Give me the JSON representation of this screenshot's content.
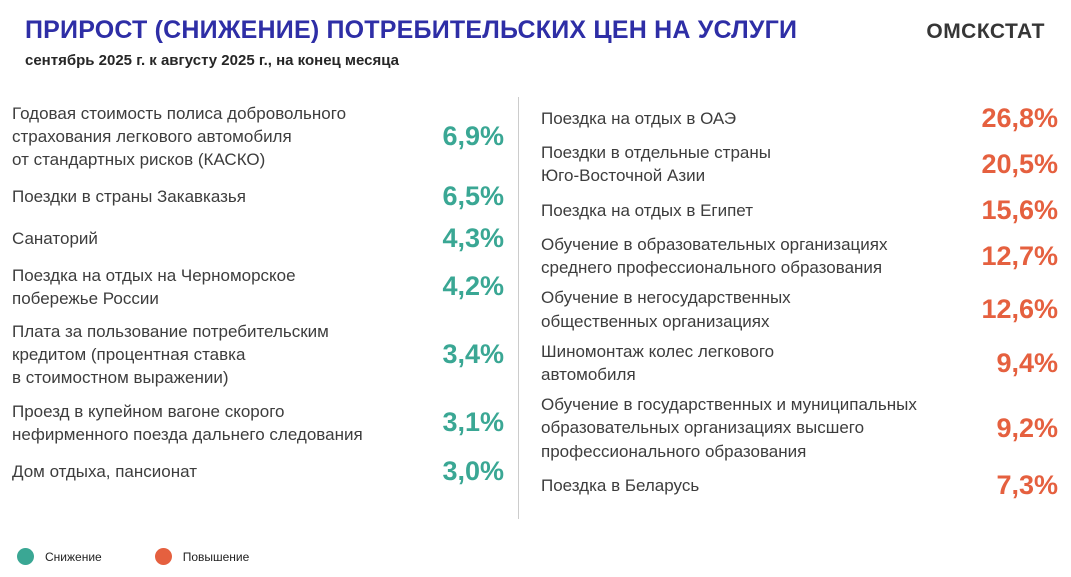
{
  "header": {
    "title": "ПРИРОСТ (СНИЖЕНИЕ) ПОТРЕБИТЕЛЬСКИХ ЦЕН НА УСЛУГИ",
    "subtitle": "сентябрь 2025 г. к августу 2025 г., на конец месяца",
    "logo": "ОМСКСТАТ"
  },
  "colors": {
    "decrease": "#3aa794",
    "increase": "#e5603f",
    "title": "#2e2ea6"
  },
  "legend": {
    "decrease_label": "Снижение",
    "increase_label": "Повышение"
  },
  "left_column": {
    "items": [
      {
        "label": "Годовая стоимость полиса добровольного\nстрахования легкового автомобиля\nот стандартных рисков (КАСКО)",
        "value": "6,9%"
      },
      {
        "label": "Поездки в страны Закавказья",
        "value": "6,5%"
      },
      {
        "label": "Санаторий",
        "value": "4,3%"
      },
      {
        "label": "Поездка на отдых на Черноморское\nпобережье России",
        "value": "4,2%"
      },
      {
        "label": "Плата за пользование потребительским\nкредитом (процентная ставка\nв стоимостном выражении)",
        "value": "3,4%"
      },
      {
        "label": "Проезд в купейном вагоне скорого\nнефирменного поезда дальнего следования",
        "value": "3,1%"
      },
      {
        "label": "Дом отдыха, пансионат",
        "value": "3,0%"
      }
    ]
  },
  "right_column": {
    "items": [
      {
        "label": "Поездка на отдых в ОАЭ",
        "value": "26,8%"
      },
      {
        "label": "Поездки в отдельные страны\nЮго-Восточной Азии",
        "value": "20,5%"
      },
      {
        "label": "Поездка на отдых в Египет",
        "value": "15,6%"
      },
      {
        "label": "Обучение в образовательных организациях\nсреднего профессионального образования",
        "value": "12,7%"
      },
      {
        "label": "Обучение в негосударственных\nобщественных организациях",
        "value": "12,6%"
      },
      {
        "label": "Шиномонтаж колес легкового\nавтомобиля",
        "value": "9,4%"
      },
      {
        "label": "Обучение в государственных и муниципальных\nобразовательных организациях высшего\nпрофессионального образования",
        "value": "9,2%"
      },
      {
        "label": "Поездка в Беларусь",
        "value": "7,3%"
      }
    ]
  },
  "chart_data": {
    "type": "table",
    "title": "ПРИРОСТ (СНИЖЕНИЕ) ПОТРЕБИТЕЛЬСКИХ ЦЕН НА УСЛУГИ",
    "subtitle": "сентябрь 2025 г. к августу 2025 г., на конец месяца",
    "unit": "%",
    "legend_position": "bottom-left",
    "series": [
      {
        "name": "Снижение",
        "color": "#3aa794",
        "points": [
          {
            "label": "Годовая стоимость полиса добровольного страхования легкового автомобиля от стандартных рисков (КАСКО)",
            "value": 6.9
          },
          {
            "label": "Поездки в страны Закавказья",
            "value": 6.5
          },
          {
            "label": "Санаторий",
            "value": 4.3
          },
          {
            "label": "Поездка на отдых на Черноморское побережье России",
            "value": 4.2
          },
          {
            "label": "Плата за пользование потребительским кредитом (процентная ставка в стоимостном выражении)",
            "value": 3.4
          },
          {
            "label": "Проезд в купейном вагоне скорого нефирменного поезда дальнего следования",
            "value": 3.1
          },
          {
            "label": "Дом отдыха, пансионат",
            "value": 3.0
          }
        ]
      },
      {
        "name": "Повышение",
        "color": "#e5603f",
        "points": [
          {
            "label": "Поездка на отдых в ОАЭ",
            "value": 26.8
          },
          {
            "label": "Поездки в отдельные страны Юго-Восточной Азии",
            "value": 20.5
          },
          {
            "label": "Поездка на отдых в Египет",
            "value": 15.6
          },
          {
            "label": "Обучение в образовательных организациях среднего профессионального образования",
            "value": 12.7
          },
          {
            "label": "Обучение в негосударственных общественных организациях",
            "value": 12.6
          },
          {
            "label": "Шиномонтаж колес легкового автомобиля",
            "value": 9.4
          },
          {
            "label": "Обучение в государственных и муниципальных образовательных организациях высшего профессионального образования",
            "value": 9.2
          },
          {
            "label": "Поездка в Беларусь",
            "value": 7.3
          }
        ]
      }
    ]
  }
}
